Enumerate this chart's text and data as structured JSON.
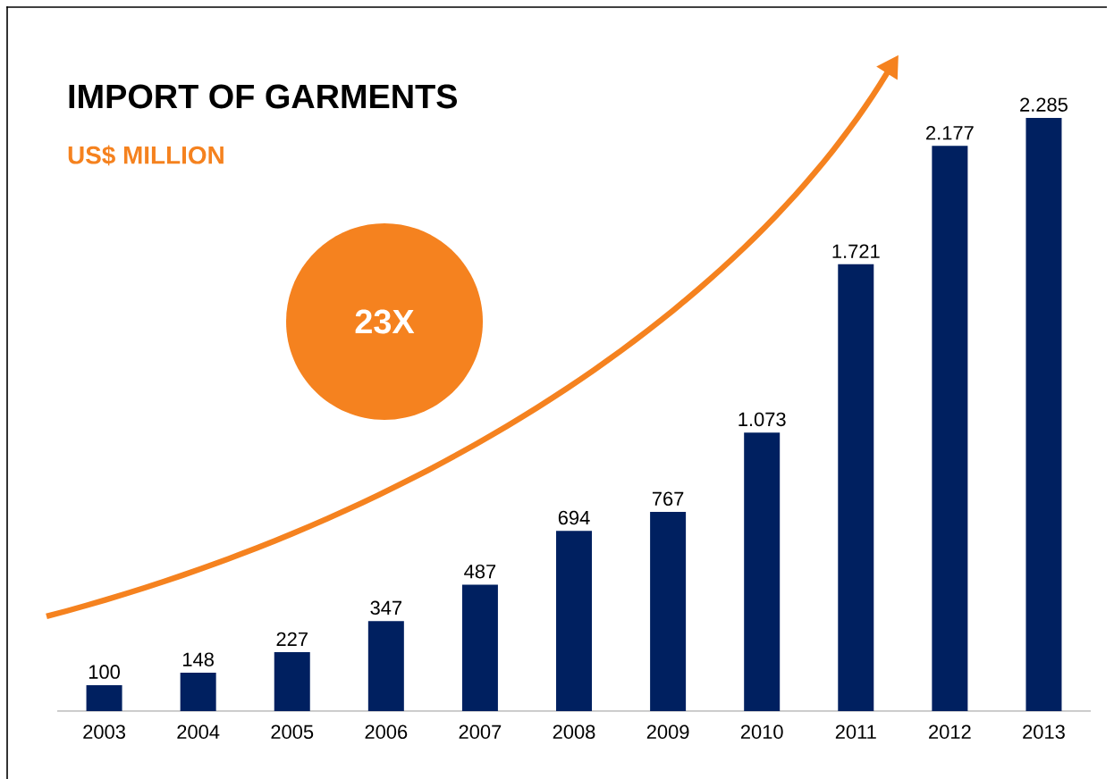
{
  "chart_data": {
    "type": "bar",
    "title": "IMPORT OF GARMENTS",
    "subtitle": "US$ MILLION",
    "categories": [
      "2003",
      "2004",
      "2005",
      "2006",
      "2007",
      "2008",
      "2009",
      "2010",
      "2011",
      "2012",
      "2013"
    ],
    "values": [
      100,
      148,
      227,
      347,
      487,
      694,
      767,
      1073,
      1721,
      2177,
      2285
    ],
    "value_labels": [
      "100",
      "148",
      "227",
      "347",
      "487",
      "694",
      "767",
      "1.073",
      "1.721",
      "2.177",
      "2.285"
    ],
    "color": "#002060",
    "annotations": [
      "23X"
    ]
  }
}
